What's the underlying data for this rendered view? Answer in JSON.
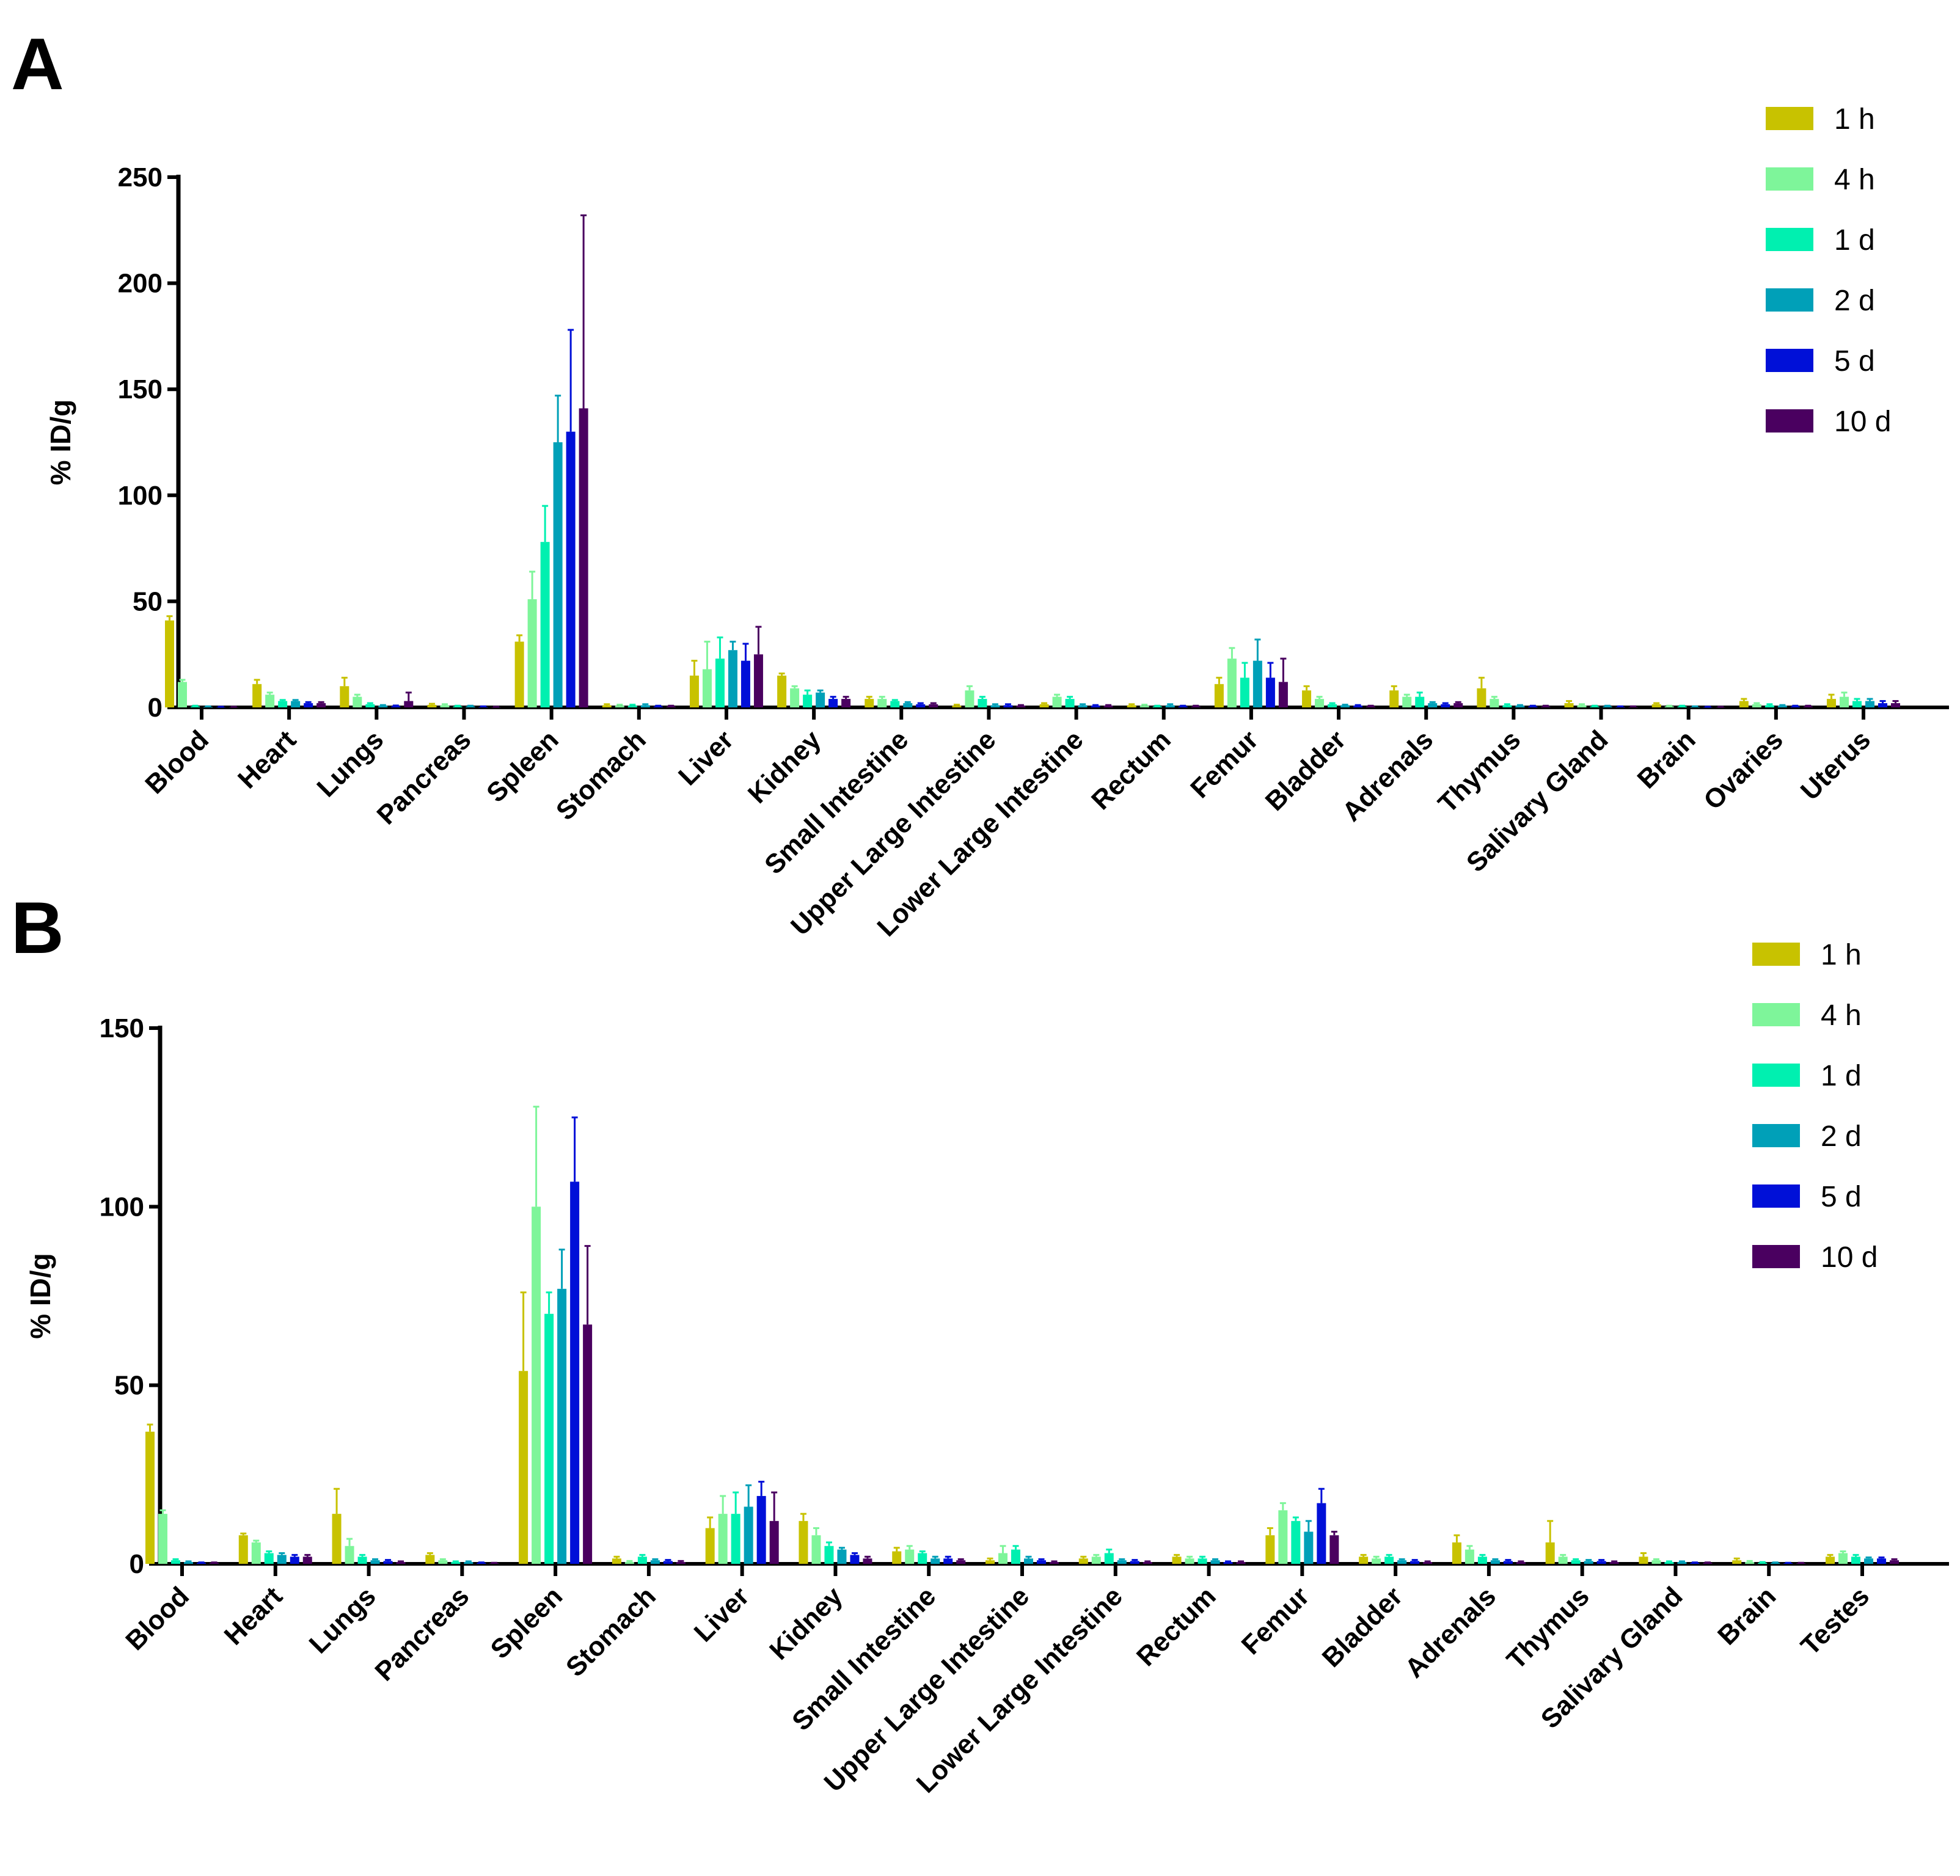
{
  "chart_data": [
    {
      "panel": "A",
      "type": "bar",
      "ylabel": "% ID/g",
      "ylim": [
        0,
        250
      ],
      "yticks": [
        "0",
        "50",
        "100",
        "150",
        "200",
        "250"
      ],
      "legend_position": "top-right",
      "categories": [
        "Blood",
        "Heart",
        "Lungs",
        "Pancreas",
        "Spleen",
        "Stomach",
        "Liver",
        "Kidney",
        "Small Intestine",
        "Upper Large Intestine",
        "Lower Large Intestine",
        "Rectum",
        "Femur",
        "Bladder",
        "Adrenals",
        "Thymus",
        "Salivary Gland",
        "Brain",
        "Ovaries",
        "Uterus"
      ],
      "series": [
        {
          "name": "1 h",
          "color": "#c8c200",
          "values": [
            41,
            11,
            10,
            1.2,
            31,
            1,
            15,
            15,
            4,
            0.8,
            1.5,
            1,
            11,
            8,
            8,
            9,
            2,
            1.5,
            3,
            4
          ],
          "errors": [
            2,
            2,
            4,
            0.5,
            3,
            0.5,
            7,
            1,
            1,
            0.5,
            0.5,
            0.5,
            3,
            2,
            2,
            5,
            1,
            0.5,
            1,
            2
          ]
        },
        {
          "name": "4 h",
          "color": "#7ef59a",
          "values": [
            12,
            6,
            5,
            1,
            51,
            0.8,
            18,
            9,
            4,
            8,
            5,
            0.8,
            23,
            4,
            5,
            4,
            1,
            0.5,
            1.5,
            5
          ]
        },
        {
          "name": "1 d",
          "color": "#00f0b0",
          "values": [
            0.5,
            3,
            1.5,
            0.5,
            78,
            0.8,
            23,
            6,
            3,
            4,
            4,
            0.5,
            14,
            1.5,
            5,
            1,
            0.5,
            0.5,
            1,
            3
          ]
        },
        {
          "name": "2 d",
          "color": "#00a0b8",
          "values": [
            0.3,
            3,
            0.8,
            0.5,
            125,
            1,
            27,
            7,
            2,
            1,
            1,
            1,
            22,
            1,
            2,
            0.8,
            0.5,
            0.3,
            0.8,
            3
          ]
        },
        {
          "name": "5 d",
          "color": "#0010d8",
          "values": [
            0.2,
            2,
            0.6,
            0.3,
            130,
            0.5,
            22,
            4,
            1.5,
            1,
            0.8,
            0.5,
            14,
            0.8,
            1.5,
            0.5,
            0.3,
            0.2,
            0.5,
            2
          ]
        },
        {
          "name": "10 d",
          "color": "#4a0060",
          "values": [
            0.2,
            2,
            3,
            0.2,
            141,
            0.5,
            25,
            4,
            1.5,
            0.8,
            0.8,
            0.5,
            12,
            0.5,
            2,
            0.5,
            0.3,
            0.2,
            0.5,
            2
          ]
        }
      ],
      "errors": [
        [
          2,
          2,
          4,
          0.5,
          3,
          0.5,
          7,
          1,
          1,
          0.5,
          0.5,
          0.5,
          3,
          2,
          2,
          5,
          1,
          0.5,
          1,
          2
        ],
        [
          1,
          1,
          1,
          0.5,
          13,
          0.5,
          13,
          1,
          1,
          2,
          1,
          0.5,
          5,
          1,
          1,
          1,
          0.5,
          0.3,
          0.5,
          2
        ],
        [
          0.3,
          0.5,
          0.5,
          0.3,
          17,
          0.5,
          10,
          2,
          0.5,
          1,
          1,
          0.3,
          7,
          0.5,
          2,
          0.5,
          0.3,
          0.3,
          0.5,
          1
        ],
        [
          0.2,
          0.5,
          0.3,
          0.3,
          22,
          0.5,
          4,
          1,
          0.5,
          0.5,
          0.5,
          0.5,
          10,
          0.3,
          0.5,
          0.3,
          0.3,
          0.2,
          0.3,
          1
        ],
        [
          0.1,
          0.5,
          0.3,
          0.2,
          48,
          0.3,
          8,
          1,
          0.5,
          0.5,
          0.3,
          0.3,
          7,
          0.3,
          0.5,
          0.3,
          0.2,
          0.1,
          0.3,
          1
        ],
        [
          0.1,
          0.5,
          4,
          0.1,
          91,
          0.3,
          13,
          1,
          0.5,
          0.3,
          0.3,
          0.3,
          11,
          0.3,
          0.5,
          0.3,
          0.2,
          0.1,
          0.3,
          1
        ]
      ]
    },
    {
      "panel": "B",
      "type": "bar",
      "ylabel": "% ID/g",
      "ylim": [
        0,
        150
      ],
      "yticks": [
        "0",
        "50",
        "100",
        "150"
      ],
      "legend_position": "top-right",
      "categories": [
        "Blood",
        "Heart",
        "Lungs",
        "Pancreas",
        "Spleen",
        "Stomach",
        "Liver",
        "Kidney",
        "Small Intestine",
        "Upper Large Intestine",
        "Lower Large Intestine",
        "Rectum",
        "Femur",
        "Bladder",
        "Adrenals",
        "Thymus",
        "Salivary Gland",
        "Brain",
        "Testes"
      ],
      "series": [
        {
          "name": "1 h",
          "color": "#c8c200",
          "values": [
            37,
            8,
            14,
            2.5,
            54,
            1.5,
            10,
            12,
            3.5,
            1,
            1.5,
            2,
            8,
            2,
            6,
            6,
            2,
            1,
            2
          ]
        },
        {
          "name": "4 h",
          "color": "#7ef59a",
          "values": [
            14,
            6,
            5,
            1,
            100,
            0.5,
            14,
            8,
            4,
            3,
            2,
            1.5,
            15,
            1.5,
            4,
            2,
            1,
            0.5,
            3
          ]
        },
        {
          "name": "1 d",
          "color": "#00f0b0",
          "values": [
            1,
            3,
            2,
            0.5,
            70,
            2,
            14,
            5,
            3,
            4,
            3,
            1.5,
            12,
            2,
            2,
            1,
            0.5,
            0.3,
            2
          ]
        },
        {
          "name": "2 d",
          "color": "#00a0b8",
          "values": [
            0.5,
            2.5,
            1,
            0.5,
            77,
            1,
            16,
            4,
            1.5,
            1.5,
            1,
            1,
            9,
            1,
            1,
            0.8,
            0.5,
            0.3,
            1.5
          ]
        },
        {
          "name": "5 d",
          "color": "#0010d8",
          "values": [
            0.3,
            2,
            0.8,
            0.3,
            107,
            0.8,
            19,
            2.5,
            1.5,
            1,
            0.8,
            0.5,
            17,
            0.8,
            0.8,
            0.8,
            0.3,
            0.2,
            1.5
          ]
        },
        {
          "name": "10 d",
          "color": "#4a0060",
          "values": [
            0.3,
            2,
            0.5,
            0.2,
            67,
            0.5,
            12,
            1.5,
            1,
            0.5,
            0.5,
            0.5,
            8,
            0.5,
            0.5,
            0.5,
            0.3,
            0.2,
            1
          ]
        }
      ],
      "errors": [
        [
          2,
          0.5,
          7,
          0.5,
          22,
          0.5,
          3,
          2,
          1,
          0.5,
          0.5,
          0.5,
          2,
          0.5,
          2,
          6,
          1,
          0.5,
          0.5
        ],
        [
          1,
          0.5,
          2,
          0.3,
          28,
          0.3,
          5,
          2,
          1,
          2,
          0.5,
          0.5,
          2,
          0.5,
          1,
          0.5,
          0.3,
          0.3,
          0.5
        ],
        [
          0.3,
          0.5,
          0.5,
          0.2,
          6,
          0.5,
          6,
          1,
          0.5,
          1,
          1,
          0.5,
          1,
          0.5,
          0.5,
          0.3,
          0.2,
          0.2,
          0.5
        ],
        [
          0.2,
          0.5,
          0.3,
          0.2,
          11,
          0.3,
          6,
          0.5,
          0.5,
          0.5,
          0.3,
          0.3,
          3,
          0.3,
          0.3,
          0.3,
          0.2,
          0.1,
          0.3
        ],
        [
          0.1,
          0.5,
          0.3,
          0.1,
          18,
          0.3,
          4,
          0.5,
          0.5,
          0.3,
          0.3,
          0.2,
          4,
          0.3,
          0.3,
          0.3,
          0.1,
          0.1,
          0.3
        ],
        [
          0.1,
          0.5,
          0.2,
          0.1,
          22,
          0.3,
          8,
          0.5,
          0.3,
          0.2,
          0.2,
          0.2,
          1,
          0.2,
          0.2,
          0.2,
          0.1,
          0.1,
          0.3
        ]
      ]
    }
  ]
}
